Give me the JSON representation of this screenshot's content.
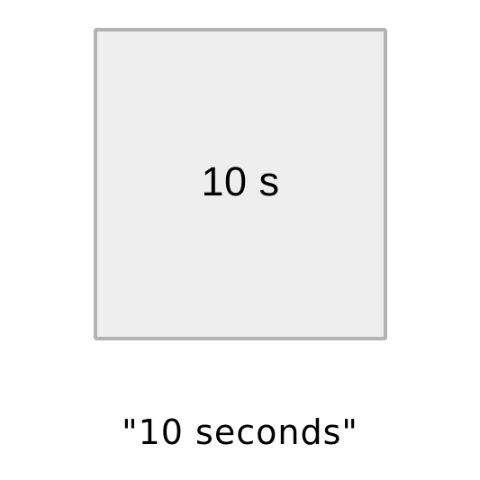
{
  "timer_box": {
    "label": "10 s",
    "fill_color": "#eeeeee",
    "border_color": "#b3b3b3"
  },
  "caption": {
    "text": "\"10 seconds\""
  }
}
